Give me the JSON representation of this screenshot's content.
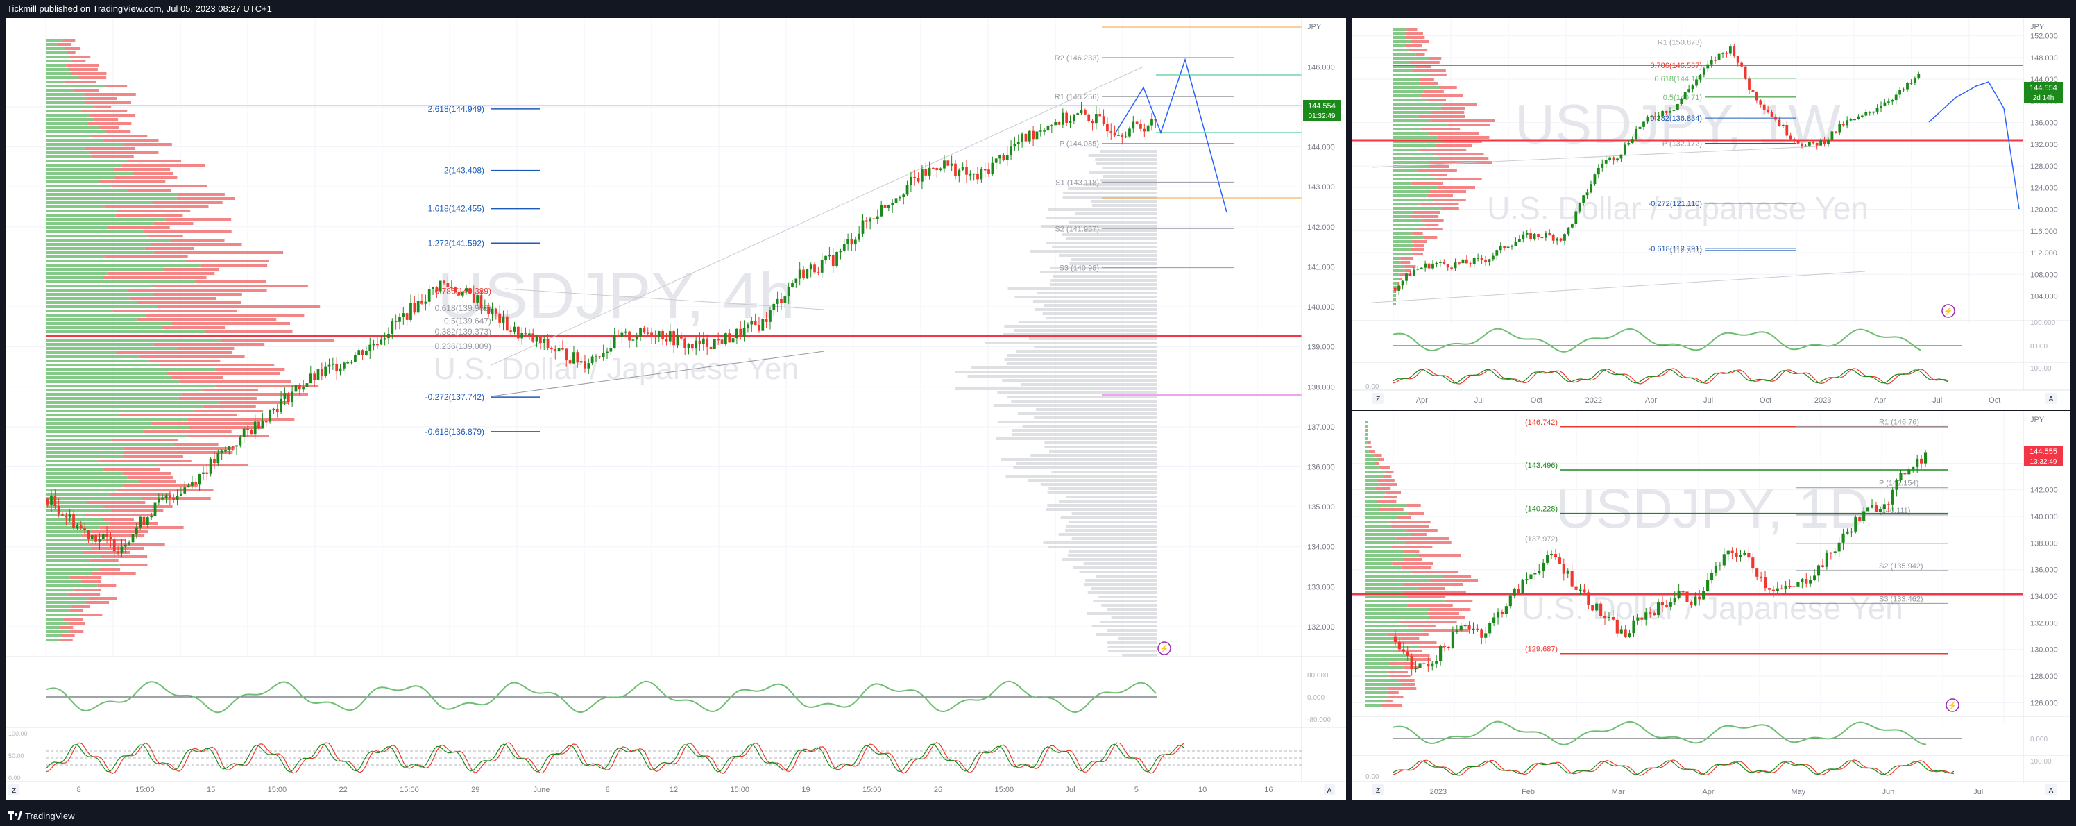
{
  "header": {
    "published": "Tickmill published on TradingView.com, Jul 05, 2023 08:27 UTC+1"
  },
  "footer": {
    "brand": "TradingView"
  },
  "colors": {
    "up": "#1b8a1b",
    "down": "#f0382f",
    "fib": "#1e5bb8",
    "pivot": "#888888",
    "bg": "#ffffff",
    "panelbg": "#131722"
  },
  "panes": {
    "main": {
      "watermark_symbol": "USDJPY, 4h",
      "watermark_name": "U.S. Dollar / Japanese Yen",
      "currency": "JPY",
      "price_tag": "144.554",
      "price_timer": "01:32:49",
      "axis_ticks": [
        "146.000",
        "145.000",
        "144.000",
        "143.000",
        "142.000",
        "141.000",
        "140.000",
        "139.000",
        "138.000",
        "137.000",
        "136.000",
        "135.000",
        "134.000",
        "133.000",
        "132.000"
      ],
      "time_ticks": [
        "8",
        "15:00",
        "15",
        "15:00",
        "22",
        "15:00",
        "29",
        "June",
        "8",
        "12",
        "15:00",
        "19",
        "15:00",
        "26",
        "15:00",
        "Jul",
        "5",
        "10",
        "16"
      ],
      "fib_levels": [
        {
          "label": "2.618(144.949)",
          "value": 144.949
        },
        {
          "label": "2(143.408)",
          "value": 143.408
        },
        {
          "label": "1.618(142.455)",
          "value": 142.455
        },
        {
          "label": "1.272(141.592)",
          "value": 141.592
        },
        {
          "label": "0.786(140.389)",
          "value": 140.389
        },
        {
          "label": "0.618(139.962)",
          "value": 139.962
        },
        {
          "label": "0.5(139.647)",
          "value": 139.647
        },
        {
          "label": "0.382(139.373)",
          "value": 139.373
        },
        {
          "label": "0.236(139.009)",
          "value": 139.009
        },
        {
          "label": "-0.272(137.742)",
          "value": 137.742
        },
        {
          "label": "-0.618(136.879)",
          "value": 136.879
        }
      ],
      "pivots": [
        {
          "label": "R2 (146.233)",
          "value": 146.233
        },
        {
          "label": "R1 (145.256)",
          "value": 145.256
        },
        {
          "label": "P (144.085)",
          "value": 144.085
        },
        {
          "label": "S1 (143.118)",
          "value": 143.118
        },
        {
          "label": "S2 (141.957)",
          "value": 141.957
        },
        {
          "label": "S3 (140.98)",
          "value": 140.98
        }
      ],
      "rsi_labels": [
        "80.000",
        "0.000",
        "-80.000"
      ],
      "stoch_labels": [
        "100.00",
        "50.00",
        "0.00"
      ],
      "z_label": "Z",
      "a_label": "A"
    },
    "weekly": {
      "watermark_symbol": "USDJPY, 1W",
      "watermark_name": "U.S. Dollar / Japanese Yen",
      "currency": "JPY",
      "price_tag": "144.554",
      "price_timer": "2d 14h",
      "axis_ticks": [
        "152.000",
        "148.000",
        "144.000",
        "140.000",
        "136.000",
        "132.000",
        "128.000",
        "124.000",
        "120.000",
        "116.000",
        "112.000",
        "108.000",
        "104.000"
      ],
      "time_ticks": [
        "Apr",
        "Jul",
        "Oct",
        "2022",
        "Apr",
        "Jul",
        "Oct",
        "2023",
        "Apr",
        "Jul",
        "Oct"
      ],
      "labels": [
        {
          "label": "R1 (150.873)",
          "value": 150.873
        },
        {
          "label": "0.786(146.567)",
          "value": 146.567
        },
        {
          "label": "0.618(144.18)",
          "value": 144.18
        },
        {
          "label": "0.5(140.71)",
          "value": 140.71
        },
        {
          "label": "0.382(136.834)",
          "value": 136.834
        },
        {
          "label": "P (132.172)",
          "value": 132.172
        },
        {
          "label": "-0.272(121.110)",
          "value": 121.11
        },
        {
          "label": "-0.618(112.791)",
          "value": 112.791
        },
        {
          "label": "(112.399)",
          "value": 112.399
        }
      ],
      "osc_labels": [
        "100.000",
        "0.000",
        "100.00",
        "0.00"
      ],
      "z_label": "Z",
      "a_label": "A"
    },
    "daily": {
      "watermark_symbol": "USDJPY, 1D",
      "watermark_name": "U.S. Dollar / Japanese Yen",
      "currency": "JPY",
      "price_tag": "144.555",
      "price_timer": "13:32:49",
      "axis_ticks": [
        "144.000",
        "142.000",
        "140.000",
        "138.000",
        "136.000",
        "134.000",
        "132.000",
        "130.000",
        "128.000",
        "126.000"
      ],
      "time_ticks": [
        "2023",
        "Feb",
        "Mar",
        "Apr",
        "May",
        "Jun",
        "Jul"
      ],
      "labels": [
        {
          "label": "(146.742)",
          "value": 146.742
        },
        {
          "label": "R1 (146.76)",
          "value": 146.76
        },
        {
          "label": "(143.496)",
          "value": 143.496
        },
        {
          "label": "P (142.154)",
          "value": 142.154
        },
        {
          "label": "(140.228)",
          "value": 140.228
        },
        {
          "label": "(140.111)",
          "value": 140.111
        },
        {
          "label": "(137.972)",
          "value": 137.972
        },
        {
          "label": "S2 (135.942)",
          "value": 135.942
        },
        {
          "label": "S3 (133.462)",
          "value": 133.462
        },
        {
          "label": "(129.687)",
          "value": 129.687
        }
      ],
      "osc_labels": [
        "0.000",
        "100.00",
        "0.00"
      ],
      "z_label": "Z",
      "a_label": "A"
    }
  },
  "chart_data": [
    {
      "type": "candlestick",
      "title": "USDJPY, 4h",
      "ylim": [
        131.6,
        146.7
      ],
      "series": [
        {
          "name": "USDJPY",
          "values": [
            135.2,
            134.4,
            134.0,
            135.0,
            135.6,
            136.4,
            137.2,
            138.0,
            138.5,
            139.0,
            139.8,
            140.6,
            140.2,
            139.4,
            139.0,
            138.6,
            139.2,
            139.4,
            139.0,
            139.2,
            139.6,
            140.8,
            141.2,
            142.2,
            143.0,
            143.6,
            143.2,
            144.0,
            144.6,
            144.8,
            144.4,
            144.6
          ]
        }
      ],
      "fib_levels": [
        144.949,
        143.408,
        142.455,
        141.592,
        140.389,
        139.962,
        139.647,
        139.373,
        139.009,
        137.742,
        136.879
      ],
      "pivots": {
        "R2": 146.233,
        "R1": 145.256,
        "P": 144.085,
        "S1": 143.118,
        "S2": 141.957,
        "S3": 140.98
      },
      "last_price": 144.554
    },
    {
      "type": "candlestick",
      "title": "USDJPY, 1W",
      "ylim": [
        101.5,
        153.5
      ],
      "series": [
        {
          "name": "USDJPY",
          "values": [
            105.5,
            108.8,
            110.0,
            109.8,
            110.2,
            111.0,
            113.5,
            115.0,
            115.2,
            114.6,
            121.5,
            128.5,
            130.2,
            135.2,
            137.6,
            139.0,
            143.5,
            147.5,
            150.0,
            142.0,
            138.0,
            134.0,
            131.5,
            132.8,
            135.8,
            137.0,
            139.5,
            141.5,
            144.554
          ]
        }
      ],
      "levels": [
        150.873,
        146.567,
        144.18,
        140.71,
        136.834,
        132.172,
        121.11,
        112.791
      ],
      "last_price": 144.554
    },
    {
      "type": "candlestick",
      "title": "USDJPY, 1D",
      "ylim": [
        125.5,
        147.2
      ],
      "series": [
        {
          "name": "USDJPY",
          "values": [
            131.0,
            128.5,
            129.0,
            130.5,
            132.0,
            131.2,
            133.0,
            134.6,
            136.2,
            137.0,
            135.2,
            133.6,
            132.2,
            131.0,
            132.6,
            133.2,
            134.2,
            133.6,
            135.8,
            137.4,
            136.8,
            134.8,
            134.4,
            135.0,
            136.2,
            137.8,
            139.6,
            140.6,
            141.4,
            143.8,
            144.554
          ]
        }
      ],
      "levels": [
        146.742,
        143.496,
        142.154,
        140.228,
        137.972,
        135.942,
        133.462,
        129.687
      ],
      "last_price": 144.555
    }
  ]
}
